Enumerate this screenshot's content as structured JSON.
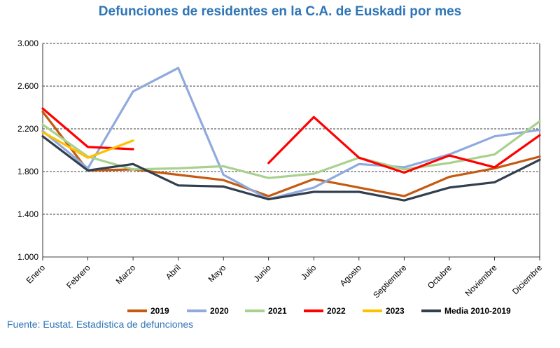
{
  "chart_data": {
    "type": "line",
    "title": "Defunciones de residentes en la C.A. de Euskadi por mes",
    "source": "Fuente: Eustat. Estadística de defunciones",
    "categories": [
      "Enero",
      "Febrero",
      "Marzo",
      "Abril",
      "Mayo",
      "Junio",
      "Julio",
      "Agosto",
      "Septiembre",
      "Octubre",
      "Noviembre",
      "Diciembre"
    ],
    "y_ticks": [
      "1.000",
      "1.400",
      "1.800",
      "2.200",
      "2.600",
      "3.000"
    ],
    "ylim": [
      1000,
      3000
    ],
    "grid": "horizontal dashed",
    "legend_position": "bottom",
    "series": [
      {
        "name": "2019",
        "color": "#C55A11",
        "values": [
          2360,
          1810,
          1820,
          1770,
          1720,
          1570,
          1730,
          1650,
          1570,
          1750,
          1830,
          1940
        ]
      },
      {
        "name": "2020",
        "color": "#8FAADC",
        "values": [
          2180,
          1830,
          2550,
          2770,
          1770,
          1540,
          1650,
          1870,
          1840,
          1960,
          2130,
          2190
        ]
      },
      {
        "name": "2021",
        "color": "#A9D18E",
        "values": [
          2240,
          1940,
          1820,
          1830,
          1850,
          1740,
          1780,
          1930,
          1820,
          1880,
          1960,
          2270
        ]
      },
      {
        "name": "2022",
        "color": "#FF0000",
        "values": [
          2390,
          2030,
          2010,
          null,
          null,
          1880,
          2310,
          1930,
          1790,
          1950,
          1840,
          2140
        ]
      },
      {
        "name": "2023",
        "color": "#FFC000",
        "values": [
          2170,
          1930,
          2090,
          null,
          null,
          null,
          null,
          null,
          null,
          null,
          null,
          null
        ]
      },
      {
        "name": "Media 2010-2019",
        "color": "#323F4F",
        "values": [
          2130,
          1810,
          1870,
          1670,
          1660,
          1540,
          1610,
          1610,
          1530,
          1650,
          1700,
          1910
        ]
      }
    ]
  }
}
